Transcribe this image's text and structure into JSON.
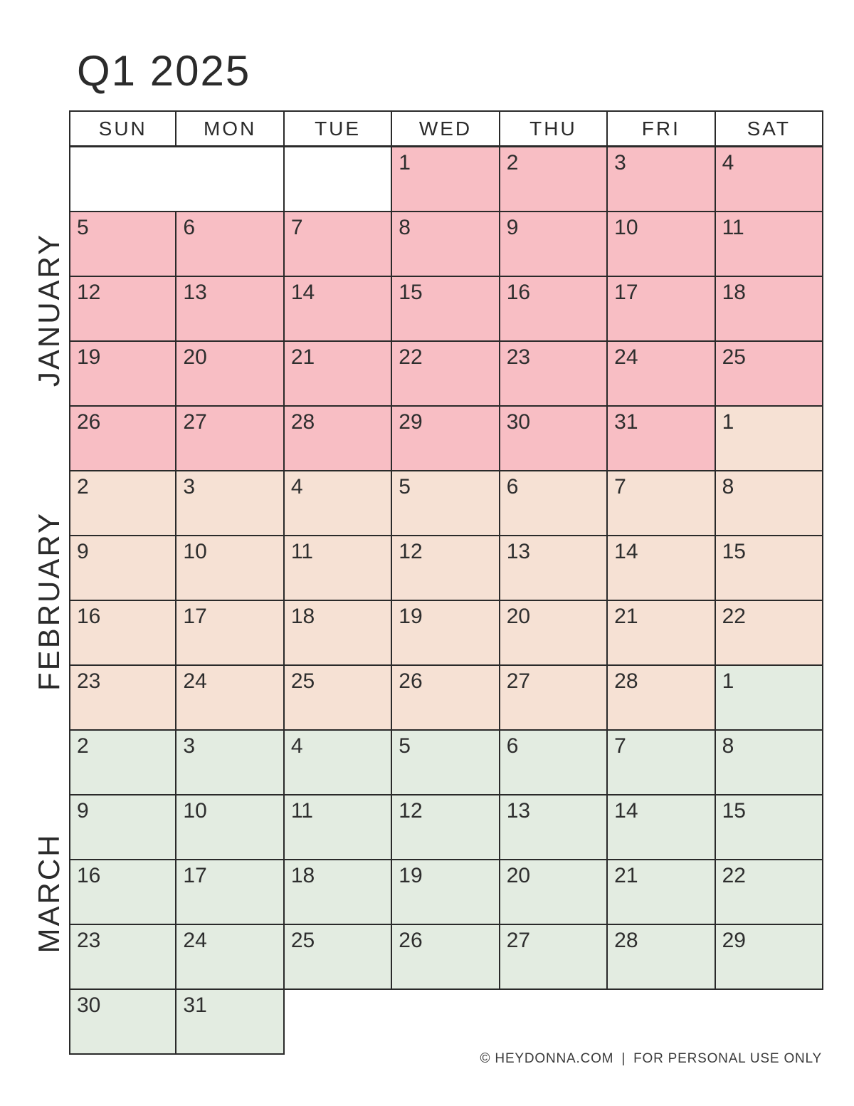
{
  "page": {
    "title": "Q1 2025",
    "footer": {
      "copyright": "© HEYDONNA.COM",
      "separator": "|",
      "note": "FOR PERSONAL USE ONLY"
    }
  },
  "colors": {
    "january": "#f8bec4",
    "february": "#f6e1d4",
    "march": "#e3ece1",
    "grid_line": "#2a2a2a",
    "day_text": "#2e2e2e"
  },
  "weekdays": [
    "SUN",
    "MON",
    "TUE",
    "WED",
    "THU",
    "FRI",
    "SAT"
  ],
  "months": [
    {
      "id": "january",
      "label": "JANUARY",
      "week_start": 0,
      "week_end": 4
    },
    {
      "id": "february",
      "label": "FEBRUARY",
      "week_start": 5,
      "week_end": 8
    },
    {
      "id": "march",
      "label": "MARCH",
      "week_start": 9,
      "week_end": 13
    }
  ],
  "weeks": [
    [
      {
        "blank": true,
        "span": 2
      },
      {
        "blank": true
      },
      {
        "day": 1,
        "month": "january"
      },
      {
        "day": 2,
        "month": "january"
      },
      {
        "day": 3,
        "month": "january"
      },
      {
        "day": 4,
        "month": "january"
      }
    ],
    [
      {
        "day": 5,
        "month": "january"
      },
      {
        "day": 6,
        "month": "january"
      },
      {
        "day": 7,
        "month": "january"
      },
      {
        "day": 8,
        "month": "january"
      },
      {
        "day": 9,
        "month": "january"
      },
      {
        "day": 10,
        "month": "january"
      },
      {
        "day": 11,
        "month": "january"
      }
    ],
    [
      {
        "day": 12,
        "month": "january"
      },
      {
        "day": 13,
        "month": "january"
      },
      {
        "day": 14,
        "month": "january"
      },
      {
        "day": 15,
        "month": "january"
      },
      {
        "day": 16,
        "month": "january"
      },
      {
        "day": 17,
        "month": "january"
      },
      {
        "day": 18,
        "month": "january"
      }
    ],
    [
      {
        "day": 19,
        "month": "january"
      },
      {
        "day": 20,
        "month": "january"
      },
      {
        "day": 21,
        "month": "january"
      },
      {
        "day": 22,
        "month": "january"
      },
      {
        "day": 23,
        "month": "january"
      },
      {
        "day": 24,
        "month": "january"
      },
      {
        "day": 25,
        "month": "january"
      }
    ],
    [
      {
        "day": 26,
        "month": "january"
      },
      {
        "day": 27,
        "month": "january"
      },
      {
        "day": 28,
        "month": "january"
      },
      {
        "day": 29,
        "month": "january"
      },
      {
        "day": 30,
        "month": "january"
      },
      {
        "day": 31,
        "month": "january"
      },
      {
        "day": 1,
        "month": "february"
      }
    ],
    [
      {
        "day": 2,
        "month": "february"
      },
      {
        "day": 3,
        "month": "february"
      },
      {
        "day": 4,
        "month": "february"
      },
      {
        "day": 5,
        "month": "february"
      },
      {
        "day": 6,
        "month": "february"
      },
      {
        "day": 7,
        "month": "february"
      },
      {
        "day": 8,
        "month": "february"
      }
    ],
    [
      {
        "day": 9,
        "month": "february"
      },
      {
        "day": 10,
        "month": "february"
      },
      {
        "day": 11,
        "month": "february"
      },
      {
        "day": 12,
        "month": "february"
      },
      {
        "day": 13,
        "month": "february"
      },
      {
        "day": 14,
        "month": "february"
      },
      {
        "day": 15,
        "month": "february"
      }
    ],
    [
      {
        "day": 16,
        "month": "february"
      },
      {
        "day": 17,
        "month": "february"
      },
      {
        "day": 18,
        "month": "february"
      },
      {
        "day": 19,
        "month": "february"
      },
      {
        "day": 20,
        "month": "february"
      },
      {
        "day": 21,
        "month": "february"
      },
      {
        "day": 22,
        "month": "february"
      }
    ],
    [
      {
        "day": 23,
        "month": "february"
      },
      {
        "day": 24,
        "month": "february"
      },
      {
        "day": 25,
        "month": "february"
      },
      {
        "day": 26,
        "month": "february"
      },
      {
        "day": 27,
        "month": "february"
      },
      {
        "day": 28,
        "month": "february"
      },
      {
        "day": 1,
        "month": "march"
      }
    ],
    [
      {
        "day": 2,
        "month": "march"
      },
      {
        "day": 3,
        "month": "march"
      },
      {
        "day": 4,
        "month": "march"
      },
      {
        "day": 5,
        "month": "march"
      },
      {
        "day": 6,
        "month": "march"
      },
      {
        "day": 7,
        "month": "march"
      },
      {
        "day": 8,
        "month": "march"
      }
    ],
    [
      {
        "day": 9,
        "month": "march"
      },
      {
        "day": 10,
        "month": "march"
      },
      {
        "day": 11,
        "month": "march"
      },
      {
        "day": 12,
        "month": "march"
      },
      {
        "day": 13,
        "month": "march"
      },
      {
        "day": 14,
        "month": "march"
      },
      {
        "day": 15,
        "month": "march"
      }
    ],
    [
      {
        "day": 16,
        "month": "march"
      },
      {
        "day": 17,
        "month": "march"
      },
      {
        "day": 18,
        "month": "march"
      },
      {
        "day": 19,
        "month": "march"
      },
      {
        "day": 20,
        "month": "march"
      },
      {
        "day": 21,
        "month": "march"
      },
      {
        "day": 22,
        "month": "march"
      }
    ],
    [
      {
        "day": 23,
        "month": "march"
      },
      {
        "day": 24,
        "month": "march"
      },
      {
        "day": 25,
        "month": "march"
      },
      {
        "day": 26,
        "month": "march"
      },
      {
        "day": 27,
        "month": "march"
      },
      {
        "day": 28,
        "month": "march"
      },
      {
        "day": 29,
        "month": "march"
      }
    ],
    [
      {
        "day": 30,
        "month": "march"
      },
      {
        "day": 31,
        "month": "march"
      },
      {
        "ghost": true,
        "span": 5
      }
    ]
  ]
}
